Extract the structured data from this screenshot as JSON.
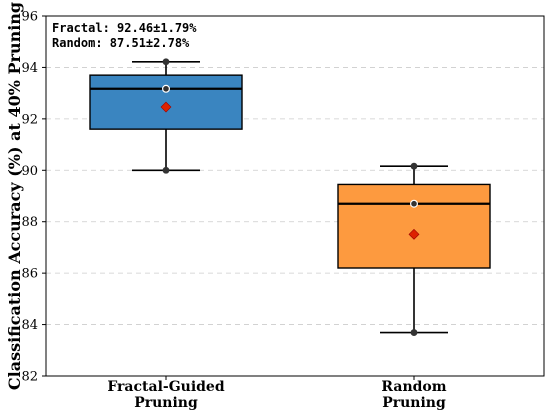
{
  "chart_data": {
    "type": "box",
    "categories": [
      "Fractal-Guided Pruning",
      "Random Pruning"
    ],
    "category_label_lines": [
      [
        "Fractal-Guided",
        "Pruning"
      ],
      [
        "Random",
        "Pruning"
      ]
    ],
    "ylabel": "Classification Accuracy (%) at 40% Pruning",
    "xlabel": "",
    "title": "",
    "ylim": [
      82,
      96
    ],
    "yticks": [
      82,
      84,
      86,
      88,
      90,
      92,
      94,
      96
    ],
    "grid": "y-dashed",
    "annotations": [
      "Fractal: 92.46±1.79%",
      "Random: 87.51±2.78%"
    ],
    "series": [
      {
        "color": "#3a85c0",
        "whisker_low": 90.0,
        "q1": 91.6,
        "median": 93.17,
        "q3": 93.7,
        "whisker_high": 94.22,
        "mean": 92.46,
        "points": [
          94.22,
          93.17,
          90.0
        ]
      },
      {
        "color": "#fd9a3f",
        "whisker_low": 83.69,
        "q1": 86.2,
        "median": 88.7,
        "q3": 89.45,
        "whisker_high": 90.16,
        "mean": 87.51,
        "points": [
          90.16,
          88.7,
          83.69
        ]
      }
    ],
    "mean_marker_color": "#dd2200"
  }
}
